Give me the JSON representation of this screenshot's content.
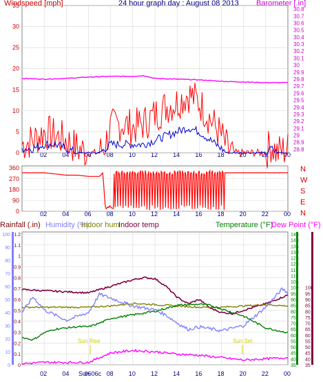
{
  "header": {
    "left_label": "Windspeed [mph]",
    "title": "24 hour graph day : August 08 2013",
    "right_label": "Barometer [.in]"
  },
  "colors": {
    "wind": "#ff0000",
    "gust": "#0000cc",
    "barometer": "#ff00ff",
    "direction": "#ff0000",
    "rain": "#800000",
    "humidity": "#8080ff",
    "indoor_hum": "#808000",
    "indoor_temp": "#800040",
    "temperature": "#008000",
    "dewpoint": "#ff00ff",
    "grid": "#d8d8d8",
    "axis_text_left": "#cc0000",
    "axis_text_right": "#cc00cc",
    "title_text": "#000080"
  },
  "x_ticks": [
    "02",
    "04",
    "06",
    "08",
    "10",
    "12",
    "14",
    "16",
    "18",
    "20",
    "22",
    "00"
  ],
  "panel3_labels": {
    "rainfall": "Rainfall (.in)",
    "humidity": "Humidity (%)",
    "indoor_hum": "Indoor hum",
    "indoor_temp": "Indoor temp",
    "temperature": "Temperature (°F)",
    "dewpoint": "Dew Point (°F)",
    "sun_rise": "Sun Rise",
    "sun_set": "Sun Set",
    "sun_marker": "Sun 06c"
  },
  "direction_letters": [
    "N",
    "W",
    "S",
    "E",
    "N"
  ],
  "chart_data": [
    {
      "type": "line",
      "name": "wind_barometer",
      "x_unit": "hour",
      "xlim": [
        0,
        24
      ],
      "left_ticks": [
        "35",
        "30",
        "25",
        "20",
        "15",
        "10",
        "5",
        "0"
      ],
      "left_ylim": [
        0,
        35
      ],
      "right_ticks": [
        "30.8",
        "30.7",
        "30.6",
        "30.5",
        "30.4",
        "30.3",
        "30.2",
        "30.1",
        "30",
        "29.9",
        "29.8",
        "29.7",
        "29.6",
        "29.5",
        "29.4",
        "29.3",
        "29.2",
        "29.1",
        "29",
        "28.9",
        "28.8"
      ],
      "right_ylim": [
        28.75,
        30.85
      ],
      "series": [
        {
          "name": "Windspeed",
          "color_key": "wind",
          "axis": "left",
          "x": [
            0,
            1,
            2,
            3,
            4,
            5,
            6,
            7,
            7.5,
            8,
            9,
            10,
            11,
            12,
            13,
            14,
            15,
            16,
            17,
            18,
            18.5,
            19,
            20,
            21,
            22,
            22.5,
            23,
            24
          ],
          "y": [
            2,
            3,
            5,
            4,
            3,
            1,
            0,
            0,
            2,
            6,
            7,
            6,
            7,
            9,
            11,
            12,
            14,
            12,
            8,
            4,
            1,
            0,
            0,
            0,
            0,
            2,
            0,
            1
          ]
        },
        {
          "name": "Gust",
          "color_key": "gust",
          "axis": "left",
          "x": [
            0,
            1,
            2,
            3,
            4,
            5,
            6,
            7,
            7.5,
            8,
            9,
            10,
            11,
            12,
            13,
            14,
            15,
            16,
            17,
            18,
            18.5,
            19,
            20,
            21,
            22,
            22.5,
            23,
            24
          ],
          "y": [
            1,
            1,
            2,
            2,
            1,
            0,
            0,
            0,
            1,
            2,
            2,
            2,
            2,
            3,
            4,
            5,
            6,
            5,
            3,
            1,
            0,
            0,
            0,
            0,
            0,
            1,
            0,
            0
          ]
        },
        {
          "name": "Barometer",
          "color_key": "barometer",
          "axis": "right",
          "x": [
            0,
            2,
            4,
            6,
            8,
            10,
            11,
            12,
            14,
            16,
            18,
            20,
            22,
            24
          ],
          "y": [
            29.81,
            29.8,
            29.81,
            29.83,
            29.84,
            29.84,
            29.85,
            29.81,
            29.8,
            29.79,
            29.77,
            29.76,
            29.75,
            29.75
          ]
        }
      ]
    },
    {
      "type": "line",
      "name": "wind_direction",
      "x_unit": "hour",
      "xlim": [
        0,
        24
      ],
      "ticks": [
        "360",
        "270",
        "180",
        "90",
        "0"
      ],
      "ylim": [
        0,
        360
      ],
      "series": [
        {
          "name": "Direction",
          "color_key": "direction",
          "x": [
            0,
            2,
            3,
            4,
            5,
            6,
            7,
            7.3,
            7.5,
            8,
            9,
            10,
            11,
            12,
            13,
            14,
            15,
            16,
            17,
            18,
            19,
            20,
            22,
            24
          ],
          "y": [
            320,
            320,
            310,
            300,
            300,
            290,
            290,
            320,
            40,
            20,
            330,
            20,
            330,
            30,
            330,
            20,
            330,
            20,
            330,
            320,
            320,
            320,
            320,
            320
          ]
        }
      ]
    },
    {
      "type": "line",
      "name": "rain_humidity_temperature",
      "x_unit": "hour",
      "xlim": [
        0,
        24
      ],
      "rain_ticks": [
        "1.2",
        "1.1",
        "1",
        "0.9",
        "0.8",
        "0.7",
        "0.6",
        "0.5",
        "0.4",
        "0.3",
        "0.2",
        "0.1",
        "0"
      ],
      "rain_ylim": [
        0,
        1.2
      ],
      "humidity_ticks": [
        "100",
        "90",
        "80",
        "70",
        "60",
        "50",
        "40",
        "30",
        "20",
        "10",
        "0"
      ],
      "humidity_ylim": [
        0,
        100
      ],
      "temp_ticks": [
        "145",
        "140",
        "135",
        "130",
        "125",
        "120",
        "115",
        "110",
        "105",
        "100",
        "95",
        "90",
        "85",
        "80",
        "75",
        "70",
        "65",
        "60",
        "55",
        "50",
        "45",
        "40",
        "35"
      ],
      "temp_ylim": [
        35,
        145
      ],
      "dew_ticks": [
        "100",
        "95",
        "90",
        "85",
        "80",
        "75",
        "70",
        "65",
        "60",
        "55",
        "50",
        "45",
        "40",
        "35"
      ],
      "series": [
        {
          "name": "Indoor temp",
          "color_key": "indoor_temp",
          "axis": "rain",
          "x": [
            0,
            2,
            4,
            6,
            8,
            10,
            11,
            12,
            13,
            14,
            15,
            16,
            17,
            18,
            19,
            20,
            22,
            24
          ],
          "y": [
            0.69,
            0.68,
            0.67,
            0.66,
            0.72,
            0.78,
            0.8,
            0.79,
            0.72,
            0.62,
            0.56,
            0.6,
            0.52,
            0.48,
            0.47,
            0.5,
            0.56,
            0.64
          ]
        },
        {
          "name": "Humidity",
          "color_key": "humidity",
          "axis": "humidity",
          "x": [
            0,
            1,
            2,
            3,
            4,
            6,
            7,
            8,
            10,
            12,
            13,
            14,
            15,
            16,
            18,
            20,
            22,
            23.5,
            24
          ],
          "y": [
            40,
            52,
            42,
            38,
            34,
            40,
            54,
            51,
            45,
            42,
            38,
            32,
            27,
            29,
            26,
            30,
            44,
            58,
            55
          ]
        },
        {
          "name": "Indoor hum",
          "color_key": "indoor_hum",
          "axis": "humidity",
          "x": [
            0,
            2,
            4,
            6,
            8,
            10,
            12,
            14,
            16,
            18,
            20,
            22,
            24
          ],
          "y": [
            44,
            44,
            44,
            44,
            45,
            47,
            46,
            45,
            44,
            44,
            45,
            46,
            45
          ]
        },
        {
          "name": "Temperature",
          "color_key": "temperature",
          "axis": "temp",
          "x": [
            0,
            1,
            2,
            3,
            4,
            5,
            6,
            7,
            8,
            10,
            12,
            14,
            16,
            17,
            18,
            20,
            22,
            24
          ],
          "y": [
            58,
            56,
            62,
            65,
            66,
            67,
            67,
            70,
            74,
            77,
            80,
            85,
            86,
            85,
            82,
            76,
            66,
            62
          ]
        },
        {
          "name": "Dew Point",
          "color_key": "dewpoint",
          "axis": "temp",
          "x": [
            0,
            2,
            4,
            6,
            7,
            8,
            10,
            12,
            14,
            16,
            18,
            20,
            22,
            24
          ],
          "y": [
            36,
            37,
            37,
            37,
            41,
            45,
            47,
            46,
            44,
            43,
            41,
            39,
            40,
            41
          ]
        }
      ]
    }
  ]
}
